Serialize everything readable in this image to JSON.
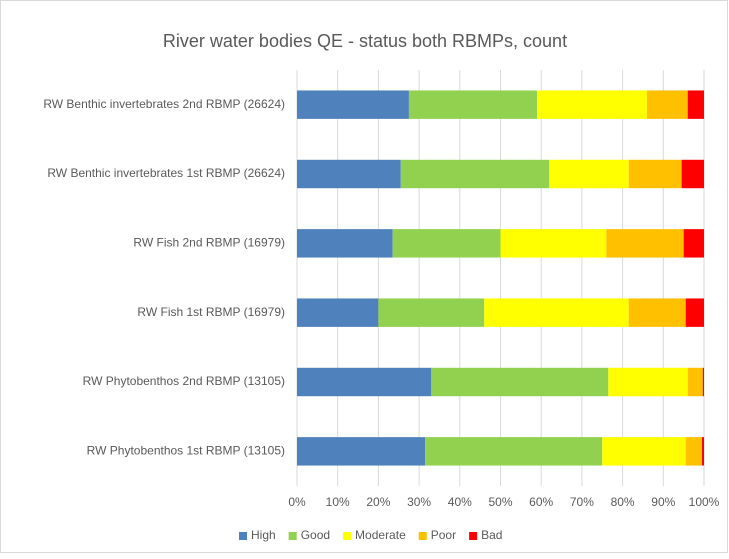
{
  "chart_data": {
    "type": "stacked_barh",
    "title": "River water bodies QE  - status both RBMPs, count",
    "categories": [
      "RW Benthic invertebrates 2nd RBMP (26624)",
      "RW Benthic invertebrates 1st RBMP (26624)",
      "RW Fish 2nd RBMP (16979)",
      "RW Fish 1st RBMP (16979)",
      "RW Phytobenthos 2nd RBMP (13105)",
      "RW Phytobenthos 1st RBMP (13105)"
    ],
    "series": [
      {
        "name": "High",
        "color": "#4f81bd",
        "values": [
          27.5,
          25.5,
          23.5,
          20,
          33,
          31.5
        ]
      },
      {
        "name": "Good",
        "color": "#92d050",
        "values": [
          31.5,
          36.5,
          26.5,
          26,
          43.5,
          43.5
        ]
      },
      {
        "name": "Moderate",
        "color": "#ffff00",
        "values": [
          27,
          19.5,
          26,
          35.5,
          19.5,
          20.5
        ]
      },
      {
        "name": "Poor",
        "color": "#ffc000",
        "values": [
          10,
          13,
          19,
          14,
          3.7,
          4
        ]
      },
      {
        "name": "Bad",
        "color": "#ff0000",
        "values": [
          4,
          5.5,
          5,
          4.5,
          0.3,
          0.5
        ]
      }
    ],
    "xlim": [
      0,
      100
    ],
    "xticks": [
      {
        "value": 0,
        "label": "0%"
      },
      {
        "value": 10,
        "label": "10%"
      },
      {
        "value": 20,
        "label": "20%"
      },
      {
        "value": 30,
        "label": "30%"
      },
      {
        "value": 40,
        "label": "40%"
      },
      {
        "value": 50,
        "label": "50%"
      },
      {
        "value": 60,
        "label": "60%"
      },
      {
        "value": 70,
        "label": "70%"
      },
      {
        "value": 80,
        "label": "80%"
      },
      {
        "value": 90,
        "label": "90%"
      },
      {
        "value": 100,
        "label": "100%"
      }
    ],
    "grid": true,
    "legend": "bottom"
  }
}
